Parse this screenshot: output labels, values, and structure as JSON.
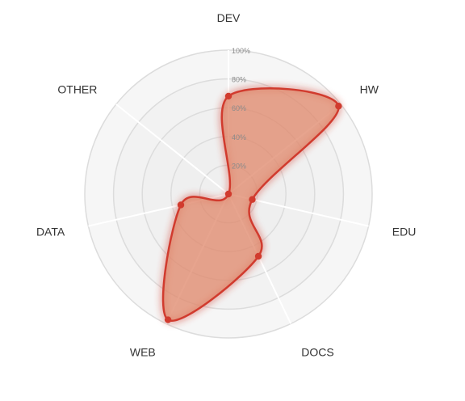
{
  "chart_data": {
    "type": "radar",
    "title": "",
    "axes": [
      "DEV",
      "HW",
      "EDU",
      "DOCS",
      "WEB",
      "DATA",
      "OTHER"
    ],
    "ticks": [
      "20%",
      "40%",
      "60%",
      "80%",
      "100%"
    ],
    "range": [
      0,
      100
    ],
    "series": [
      {
        "values": [
          68,
          98,
          17,
          48,
          97,
          34,
          0
        ],
        "color": "#d13b2e",
        "fill": "#e08a6e"
      }
    ],
    "grid_fill": "#efefef",
    "grid_stroke": "#dcdcdc",
    "spoke_color": "#ffffff",
    "legend": "none"
  }
}
